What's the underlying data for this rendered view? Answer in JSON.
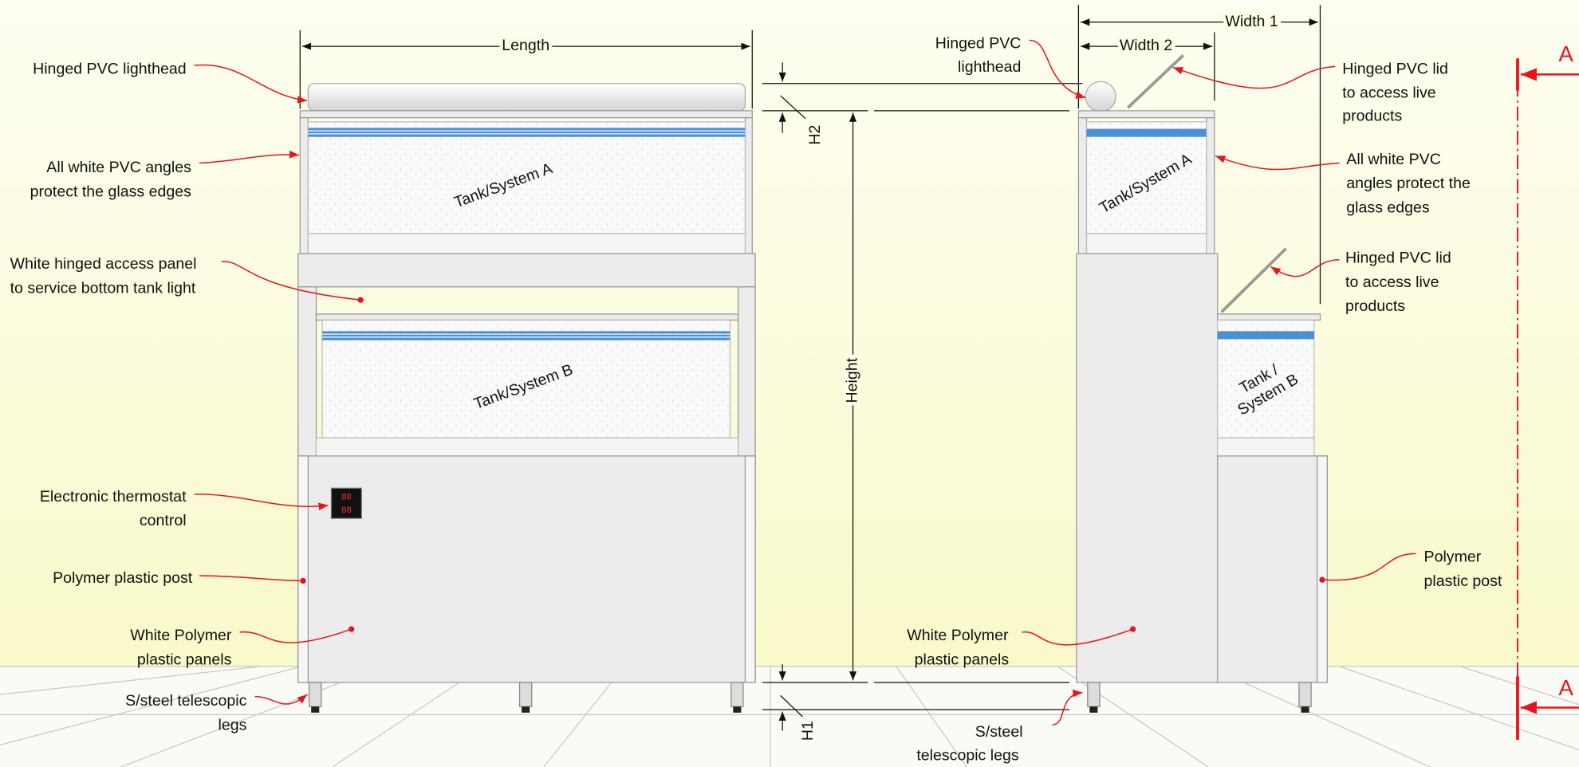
{
  "front_view": {
    "dimensions": {
      "length": "Length",
      "height": "Height",
      "h1": "H1",
      "h2": "H2"
    },
    "tanks": [
      "Tank/System A",
      "Tank/System B"
    ],
    "thermostat_display": [
      "88",
      "88"
    ],
    "callouts": [
      [
        "Hinged PVC lighthead"
      ],
      [
        "All white PVC angles",
        "protect the glass edges"
      ],
      [
        "White hinged access panel",
        "to service bottom tank light"
      ],
      [
        "Electronic thermostat",
        "control"
      ],
      [
        "Polymer plastic post"
      ],
      [
        "White Polymer",
        "plastic panels"
      ],
      [
        "S/steel telescopic",
        "legs"
      ]
    ]
  },
  "side_view": {
    "dimensions": {
      "width1": "Width 1",
      "width2": "Width 2"
    },
    "tanks": [
      [
        "Tank/System A"
      ],
      [
        "Tank /",
        "System B"
      ]
    ],
    "callouts": [
      [
        "Hinged PVC",
        "lighthead"
      ],
      [
        "Hinged PVC lid",
        "to access live",
        "products"
      ],
      [
        "All white PVC",
        "angles protect the",
        "glass edges"
      ],
      [
        "Hinged PVC lid",
        "to access live",
        "products"
      ],
      [
        "Polymer",
        "plastic post"
      ],
      [
        "White Polymer",
        "plastic panels"
      ],
      [
        "S/steel",
        "telescopic legs"
      ]
    ]
  },
  "section_marks": [
    "A",
    "A"
  ]
}
